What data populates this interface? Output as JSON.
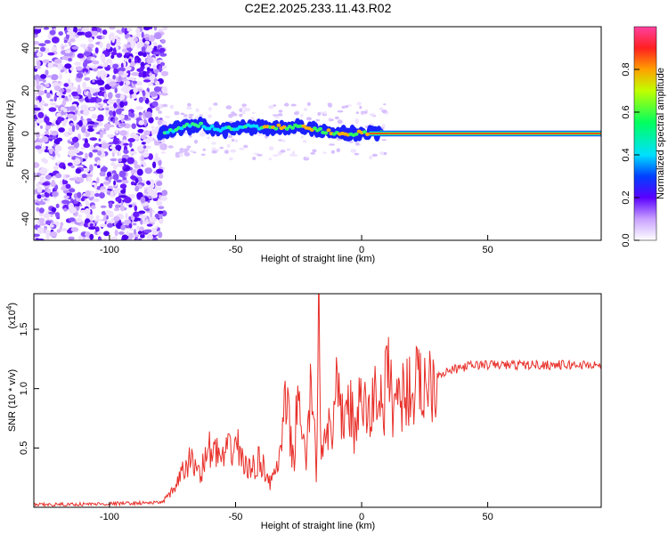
{
  "title": "C2E2.2025.233.11.43.R02",
  "chart_data": [
    {
      "type": "heatmap",
      "xlabel": "Height of straight line (km)",
      "ylabel": "Frequency (Hz)",
      "xlim": [
        -130,
        95
      ],
      "ylim": [
        -50,
        50
      ],
      "xticks": [
        "-100",
        "-50",
        "0",
        "50"
      ],
      "yticks": [
        "-40",
        "-20",
        "0",
        "20",
        "40"
      ],
      "colorbar": {
        "label": "Normalized spectral amplitude",
        "ticks": [
          "0.0",
          "0.2",
          "0.4",
          "0.6",
          "0.8"
        ],
        "range": [
          0,
          1
        ]
      },
      "ridge": [
        {
          "x": -78,
          "y": 0
        },
        {
          "x": -72,
          "y": 3
        },
        {
          "x": -65,
          "y": 4
        },
        {
          "x": -55,
          "y": 2
        },
        {
          "x": -45,
          "y": 3
        },
        {
          "x": -35,
          "y": 3
        },
        {
          "x": -25,
          "y": 3
        },
        {
          "x": -15,
          "y": 1
        },
        {
          "x": -5,
          "y": 0
        },
        {
          "x": 5,
          "y": 0
        },
        {
          "x": 95,
          "y": 0
        }
      ]
    },
    {
      "type": "line",
      "xlabel": "Height of straight line (km)",
      "ylabel": "SNR (10 * v/v)",
      "yscale_label": "(x10",
      "yscale_exp": "4",
      "xlim": [
        -130,
        95
      ],
      "ylim": [
        0,
        18000
      ],
      "xticks": [
        "-100",
        "-50",
        "0",
        "50"
      ],
      "yticks": [
        "0.5",
        "1.0",
        "1.5"
      ],
      "color": "#e8302a",
      "series": [
        {
          "x": [
            -130,
            -100,
            -80,
            -76,
            -72,
            -68,
            -64,
            -60,
            -55,
            -50,
            -45,
            -40,
            -36,
            -32,
            -30,
            -27,
            -25,
            -22,
            -20,
            -18,
            -17,
            -16,
            -14,
            -12,
            -10,
            -8,
            -5,
            -3,
            0,
            3,
            6,
            9,
            10,
            12,
            15,
            20,
            25,
            30,
            35,
            40,
            45,
            50,
            60,
            70,
            80,
            95
          ],
          "y": [
            200,
            300,
            400,
            1000,
            2500,
            4000,
            3000,
            5000,
            4000,
            5500,
            3000,
            4000,
            2000,
            4500,
            9000,
            3500,
            10500,
            3000,
            11500,
            2500,
            18000,
            4000,
            8000,
            5000,
            9500,
            7500,
            9000,
            6500,
            9000,
            7500,
            10000,
            8500,
            12500,
            9000,
            9500,
            10000,
            10500,
            11200,
            11500,
            11800,
            12000,
            12000,
            12000,
            12000,
            12000,
            12000
          ]
        }
      ]
    }
  ]
}
